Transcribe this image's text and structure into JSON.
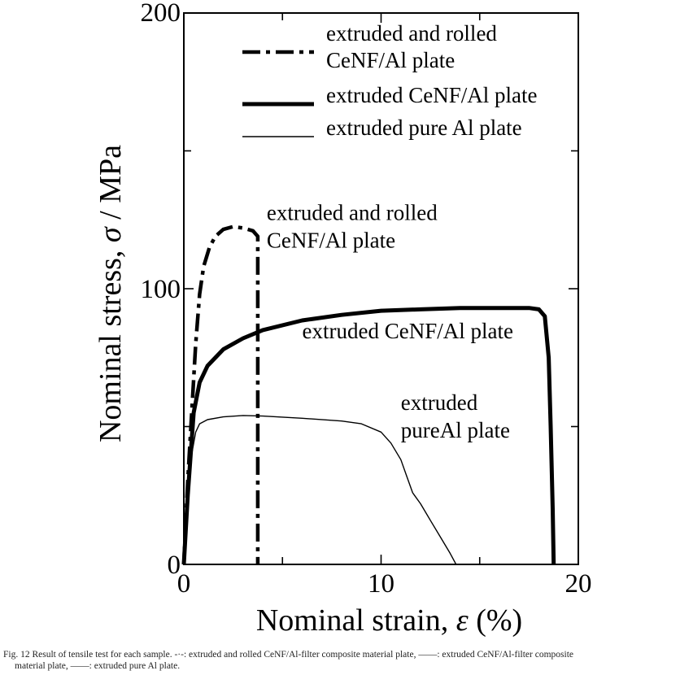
{
  "chart_data": {
    "type": "line",
    "xlabel_prefix": "Nominal strain, ",
    "xlabel_symbol": "ε",
    "xlabel_suffix": " (%)",
    "ylabel_prefix": "Nominal stress, ",
    "ylabel_symbol": "σ",
    "ylabel_suffix": " / MPa",
    "xlim": [
      0,
      20
    ],
    "ylim": [
      0,
      200
    ],
    "x_ticks": [
      0,
      10,
      20
    ],
    "y_ticks": [
      0,
      100,
      200
    ],
    "x_tick_labels": [
      "0",
      "10",
      "20"
    ],
    "y_tick_labels": [
      "0",
      "100",
      "200"
    ],
    "grid": false,
    "legend_position": "top-right",
    "series": [
      {
        "name": "extruded and rolled CeNF/Al plate",
        "legend_lines": [
          "extruded and rolled",
          "CeNF/Al plate"
        ],
        "style": "dashdot",
        "points": [
          [
            0.0,
            0
          ],
          [
            0.2,
            30
          ],
          [
            0.4,
            55
          ],
          [
            0.6,
            80
          ],
          [
            0.8,
            98
          ],
          [
            1.0,
            108
          ],
          [
            1.3,
            115
          ],
          [
            1.6,
            119
          ],
          [
            2.0,
            121.5
          ],
          [
            2.5,
            122.5
          ],
          [
            3.0,
            122
          ],
          [
            3.5,
            121
          ],
          [
            3.75,
            119
          ],
          [
            3.75,
            0
          ]
        ]
      },
      {
        "name": "extruded CeNF/Al plate",
        "legend_lines": [
          "extruded CeNF/Al plate"
        ],
        "style": "thick",
        "points": [
          [
            0.0,
            0
          ],
          [
            0.2,
            25
          ],
          [
            0.5,
            55
          ],
          [
            0.8,
            66
          ],
          [
            1.2,
            72
          ],
          [
            2.0,
            78
          ],
          [
            3.0,
            82
          ],
          [
            4.0,
            85
          ],
          [
            6.0,
            88.5
          ],
          [
            8.0,
            90.5
          ],
          [
            10.0,
            92
          ],
          [
            12.0,
            92.5
          ],
          [
            14.0,
            93
          ],
          [
            16.0,
            93
          ],
          [
            17.5,
            93
          ],
          [
            18.0,
            92.5
          ],
          [
            18.3,
            90
          ],
          [
            18.5,
            75
          ],
          [
            18.6,
            50
          ],
          [
            18.7,
            20
          ],
          [
            18.75,
            0
          ]
        ]
      },
      {
        "name": "extruded pure Al plate",
        "legend_lines": [
          "extruded pure Al plate"
        ],
        "style": "thin",
        "points": [
          [
            0.0,
            0
          ],
          [
            0.2,
            20
          ],
          [
            0.4,
            40
          ],
          [
            0.6,
            48
          ],
          [
            0.8,
            51
          ],
          [
            1.2,
            52.5
          ],
          [
            2.0,
            53.5
          ],
          [
            3.0,
            54
          ],
          [
            4.0,
            53.8
          ],
          [
            6.0,
            53
          ],
          [
            8.0,
            52
          ],
          [
            9.0,
            51
          ],
          [
            10.0,
            48
          ],
          [
            10.5,
            44
          ],
          [
            11.0,
            38
          ],
          [
            11.3,
            32
          ],
          [
            11.6,
            26
          ],
          [
            12.0,
            22
          ],
          [
            12.5,
            16
          ],
          [
            13.0,
            10
          ],
          [
            13.5,
            4
          ],
          [
            13.8,
            0
          ]
        ]
      }
    ],
    "annotations": [
      {
        "lines": [
          "extruded and rolled",
          "CeNF/Al plate"
        ],
        "x": 4.2,
        "y": 125
      },
      {
        "lines": [
          "extruded CeNF/Al plate"
        ],
        "x": 6.0,
        "y": 82
      },
      {
        "lines": [
          "extruded",
          "pureAl plate"
        ],
        "x": 11.0,
        "y": 56
      }
    ]
  },
  "caption": {
    "line1": "Fig.  12    Result of tensile test for each sample. -·-: extruded and rolled CeNF/Al-filter composite material plate, ——: extruded CeNF/Al-filter composite",
    "line2": "material plate, ——: extruded pure Al plate."
  }
}
